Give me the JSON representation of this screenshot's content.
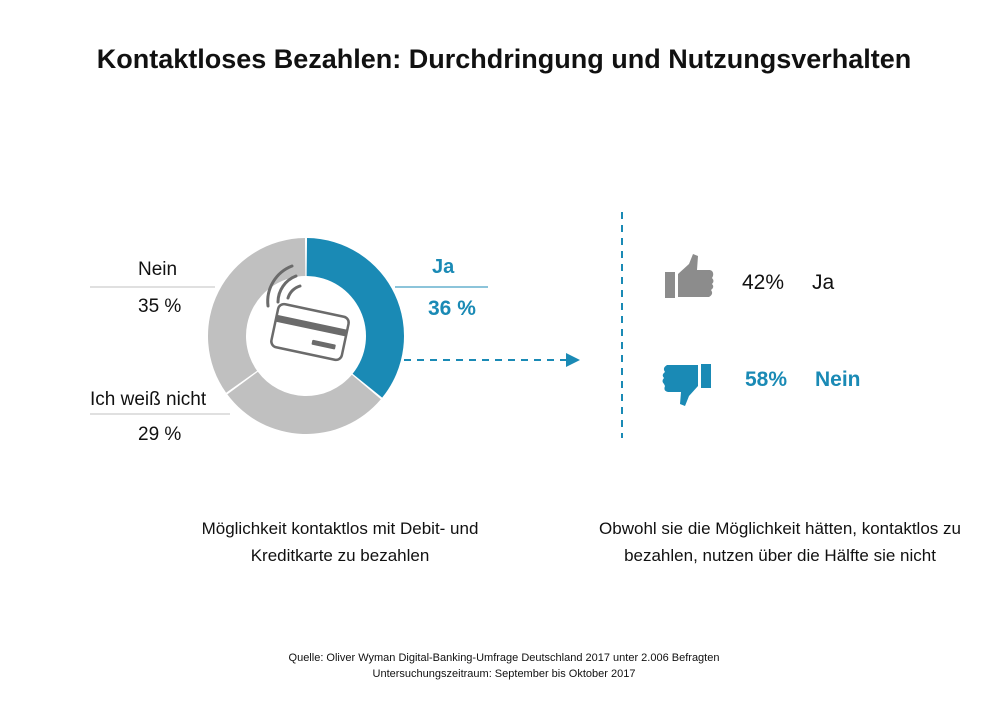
{
  "title": "Kontaktloses Bezahlen: Durchdringung und Nutzungsverhalten",
  "chart_data": {
    "type": "pie",
    "variant": "donut",
    "slices": [
      {
        "label": "Ja",
        "value": 36,
        "display": "36 %",
        "color": "#1a8ab5"
      },
      {
        "label": "Ich weiß nicht",
        "value": 29,
        "display": "29 %",
        "color": "#c0c0c0"
      },
      {
        "label": "Nein",
        "value": 35,
        "display": "35 %",
        "color": "#c0c0c0"
      }
    ]
  },
  "usage": {
    "yes": {
      "percent": "42%",
      "label": "Ja",
      "icon": "thumbs-up-icon",
      "color": "#8c8c8c"
    },
    "no": {
      "percent": "58%",
      "label": "Nein",
      "icon": "thumbs-down-icon",
      "color": "#1a8ab5"
    }
  },
  "caption_left": {
    "line1": "Möglichkeit kontaktlos mit Debit- und",
    "line2": "Kreditkarte zu bezahlen"
  },
  "caption_right": {
    "line1": "Obwohl sie die Möglichkeit hätten, kontaktlos zu",
    "line2": "bezahlen, nutzen über die Hälfte sie nicht"
  },
  "source": {
    "line1": "Quelle: Oliver Wyman Digital-Banking-Umfrage Deutschland 2017 unter 2.006 Befragten",
    "line2": "Untersuchungszeitraum: September  bis Oktober 2017"
  },
  "colors": {
    "accent": "#1a8ab5",
    "neutral": "#c0c0c0",
    "icon_gray": "#8c8c8c"
  }
}
